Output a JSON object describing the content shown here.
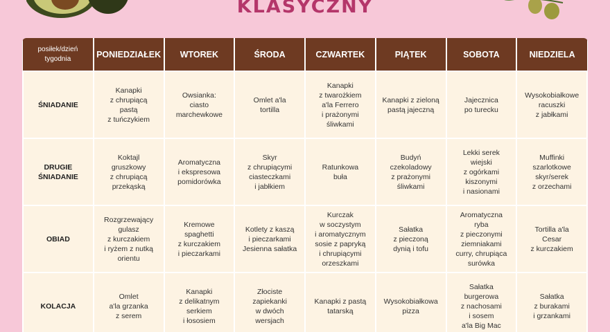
{
  "title": "KLASYCZNY",
  "icons": {
    "left": "avocado-illustration",
    "right": "olive-branch-illustration"
  },
  "colors": {
    "background": "#f7c8d8",
    "header": "#6e3a22",
    "cell": "#fdf3e3",
    "title": "#b4366a"
  },
  "table": {
    "corner": "posiłek/dzień\ntygodnia",
    "days": [
      "PONIEDZIAŁEK",
      "WTOREK",
      "ŚRODA",
      "CZWARTEK",
      "PIĄTEK",
      "SOBOTA",
      "NIEDZIELA"
    ],
    "rows": [
      {
        "meal": "ŚNIADANIE",
        "cells": [
          "Kanapki\nz chrupiącą\npastą\nz tuńczykiem",
          "Owsianka:\nciasto\nmarchewkowe",
          "Omlet a'la\ntortilla",
          "Kanapki\nz twarożkiem\na'la Ferrero\ni prażonymi\nśliwkami",
          "Kanapki z zieloną\npastą jajeczną",
          "Jajecznica\npo turecku",
          "Wysokobiałkowe\nracuszki\nz jabłkami"
        ]
      },
      {
        "meal": "DRUGIE\nŚNIADANIE",
        "cells": [
          "Koktajl\ngruszkowy\nz chrupiącą\nprzekąską",
          "Aromatyczna\ni ekspresowa\npomidorówka",
          "Skyr\nz chrupiącymi\nciasteczkami\ni jabłkiem",
          "Ratunkowa\nbuła",
          "Budyń\nczekoladowy\nz prażonymi\nśliwkami",
          "Lekki serek\nwiejski\nz ogórkami\nkiszonymi\ni nasionami",
          "Muffinki\nszarlotkowe\nskyr/serek\nz orzechami"
        ]
      },
      {
        "meal": "OBIAD",
        "cells": [
          "Rozgrzewający\ngulasz\nz kurczakiem\ni ryżem z nutką\norientu",
          "Kremowe\nspaghetti\nz kurczakiem\ni pieczarkami",
          "Kotlety z kaszą\ni pieczarkami\nJesienna sałatka",
          "Kurczak\nw soczystym\ni aromatycznym\nsosie z papryką\ni chrupiącymi\norzeszkami",
          "Sałatka\nz pieczoną\ndynią i tofu",
          "Aromatyczna\nryba\nz pieczonymi\nziemniakami\ncurry, chrupiąca\nsurówka",
          "Tortilla a'la\nCesar\nz kurczakiem"
        ]
      },
      {
        "meal": "KOLACJA",
        "cells": [
          "Omlet\na'la grzanka\nz serem",
          "Kanapki\nz delikatnym\nserkiem\ni łososiem",
          "Złociste\nzapiekanki\nw dwóch\nwersjach",
          "Kanapki z pastą\ntatarską",
          "Wysokobiałkowa\npizza",
          "Sałatka\nburgerowa\nz nachosami\ni sosem\na'la Big Mac",
          "Sałatka\nz burakami\ni grzankami"
        ]
      }
    ]
  }
}
